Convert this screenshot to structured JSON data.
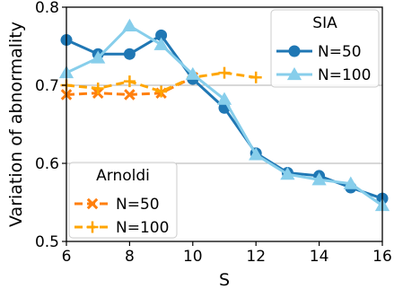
{
  "chart_data": {
    "type": "line",
    "xlabel": "S",
    "ylabel": "Variation of abnormality",
    "xlim": [
      6,
      16
    ],
    "ylim": [
      0.5,
      0.8
    ],
    "xticks": [
      6,
      8,
      10,
      12,
      14,
      16
    ],
    "yticks": [
      0.5,
      0.6,
      0.7,
      0.8
    ],
    "grid": "horizontal",
    "legend_groups": [
      {
        "title": "SIA",
        "placement": "top-right",
        "series": [
          {
            "name": "N=50",
            "color": "#1f77b4",
            "marker": "circle",
            "linestyle": "solid",
            "x": [
              6,
              7,
              8,
              9,
              10,
              11,
              12,
              13,
              14,
              15,
              16
            ],
            "y": [
              0.758,
              0.74,
              0.74,
              0.764,
              0.708,
              0.671,
              0.613,
              0.588,
              0.584,
              0.569,
              0.555
            ]
          },
          {
            "name": "N=100",
            "color": "#87ceeb",
            "marker": "triangle",
            "linestyle": "solid",
            "x": [
              6,
              7,
              8,
              9,
              10,
              11,
              12,
              13,
              14,
              15,
              16
            ],
            "y": [
              0.716,
              0.735,
              0.776,
              0.752,
              0.714,
              0.682,
              0.611,
              0.586,
              0.579,
              0.574,
              0.546
            ]
          }
        ]
      },
      {
        "title": "Arnoldi",
        "placement": "bottom-left",
        "series": [
          {
            "name": "N=50",
            "color": "#ff7f0e",
            "marker": "x",
            "linestyle": "dashed",
            "x": [
              6,
              7,
              8,
              9,
              10
            ],
            "y": [
              0.688,
              0.69,
              0.688,
              0.69,
              0.71
            ]
          },
          {
            "name": "N=100",
            "color": "#ffa500",
            "marker": "plus",
            "linestyle": "dashed",
            "x": [
              6,
              7,
              8,
              9,
              10,
              11,
              12
            ],
            "y": [
              0.7,
              0.696,
              0.705,
              0.692,
              0.71,
              0.716,
              0.71
            ]
          }
        ]
      }
    ]
  }
}
